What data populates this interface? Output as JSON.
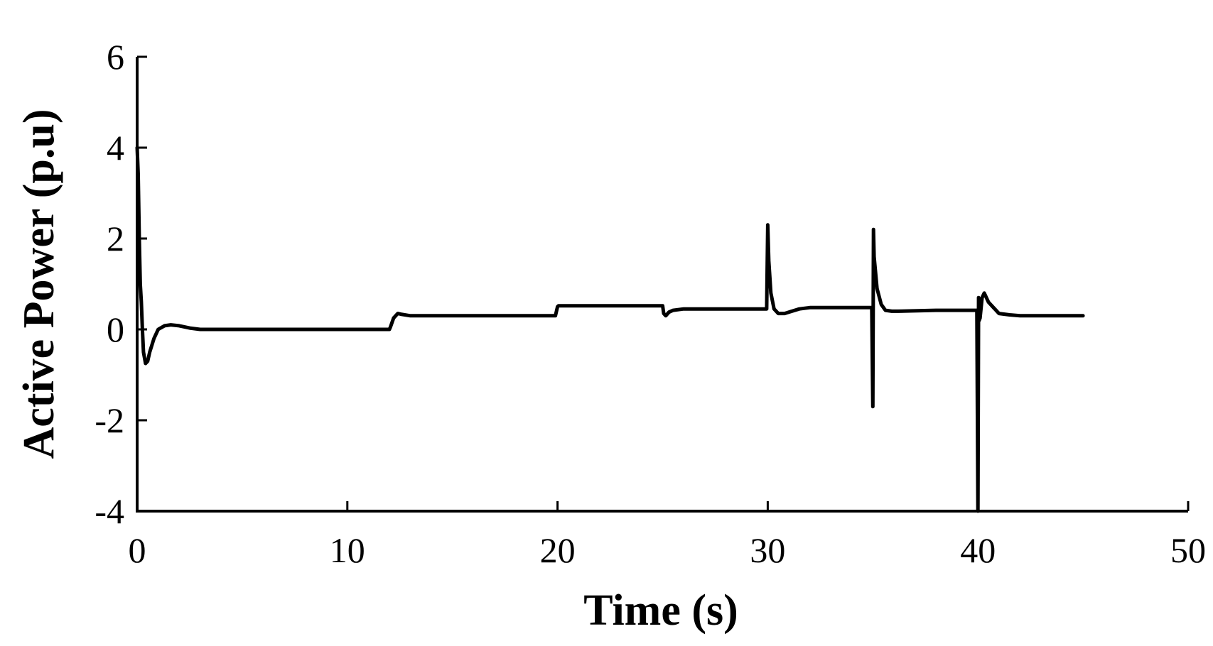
{
  "chart_data": {
    "type": "line",
    "title": "",
    "xlabel": "Time (s)",
    "ylabel": "Active Power (p.u)",
    "xlim": [
      0,
      50
    ],
    "ylim": [
      -4,
      6
    ],
    "xticks": [
      0,
      10,
      20,
      30,
      40,
      50
    ],
    "yticks": [
      -4,
      -2,
      0,
      2,
      4,
      6
    ],
    "grid": false,
    "legend": "none",
    "series": [
      {
        "color": "#000000",
        "x": [
          0,
          0.05,
          0.1,
          0.15,
          0.2,
          0.25,
          0.3,
          0.4,
          0.5,
          0.6,
          0.8,
          1.0,
          1.3,
          1.6,
          2.0,
          2.5,
          3.0,
          6.0,
          10.0,
          12.0,
          12.05,
          12.2,
          12.4,
          12.6,
          13.0,
          16.0,
          19.9,
          20.0,
          20.05,
          20.3,
          22.0,
          25.0,
          25.05,
          25.15,
          25.3,
          25.5,
          26.0,
          28.0,
          29.95,
          30.0,
          30.05,
          30.15,
          30.3,
          30.5,
          30.8,
          31.0,
          31.5,
          32.0,
          34.0,
          34.95,
          35.0,
          35.03,
          35.06,
          35.2,
          35.4,
          35.6,
          35.9,
          36.2,
          38.0,
          39.95,
          40.0,
          40.03,
          40.06,
          40.1,
          40.2,
          40.3,
          40.5,
          40.8,
          41.0,
          41.5,
          42.0,
          45.0
        ],
        "y": [
          4.0,
          3.4,
          2.0,
          1.0,
          0.6,
          0.0,
          -0.5,
          -0.75,
          -0.7,
          -0.5,
          -0.2,
          0.0,
          0.08,
          0.1,
          0.08,
          0.03,
          0.0,
          0.0,
          0.0,
          0.0,
          0.05,
          0.25,
          0.35,
          0.33,
          0.3,
          0.3,
          0.3,
          0.5,
          0.52,
          0.52,
          0.52,
          0.52,
          0.35,
          0.3,
          0.38,
          0.42,
          0.45,
          0.45,
          0.45,
          2.3,
          1.5,
          0.8,
          0.45,
          0.35,
          0.35,
          0.38,
          0.45,
          0.48,
          0.48,
          0.48,
          -1.7,
          2.2,
          1.6,
          0.9,
          0.55,
          0.42,
          0.4,
          0.4,
          0.42,
          0.42,
          -4.0,
          0.7,
          0.2,
          0.25,
          0.7,
          0.8,
          0.6,
          0.45,
          0.35,
          0.32,
          0.3,
          0.3
        ]
      }
    ]
  }
}
